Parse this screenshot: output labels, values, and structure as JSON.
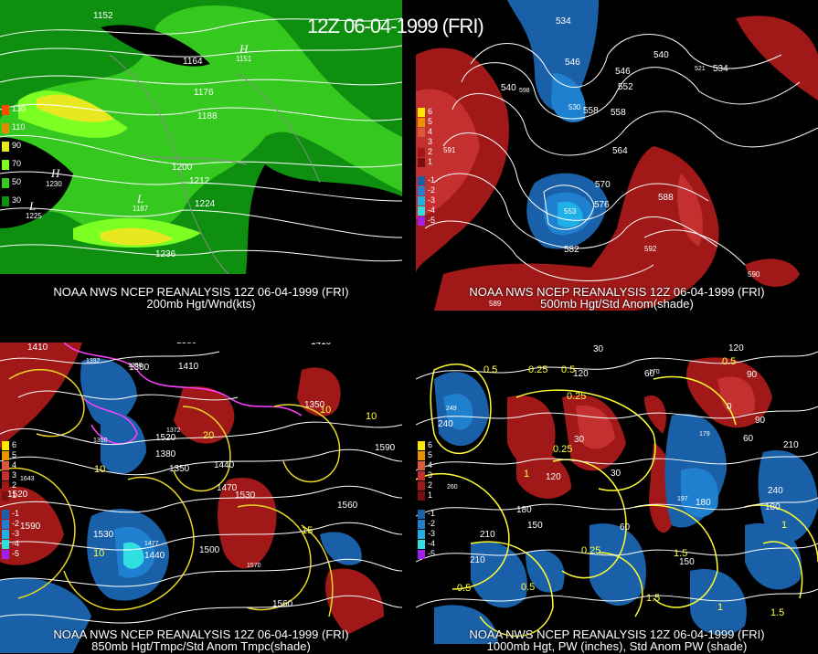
{
  "header": {
    "datetime": "12Z 06-04-1999 (FRI)"
  },
  "panels": [
    {
      "title_line1": "NOAA NWS NCEP REANALYSIS 12Z 06-04-1999 (FRI)",
      "title_line2": "200mb Hgt/Wnd(kts)",
      "legend": [
        {
          "label": "130",
          "color": "#ff4a00"
        },
        {
          "label": "110",
          "color": "#e08a00"
        },
        {
          "label": "90",
          "color": "#e8e820"
        },
        {
          "label": "70",
          "color": "#7cff22"
        },
        {
          "label": "50",
          "color": "#35c81f"
        },
        {
          "label": "30",
          "color": "#0f8f10"
        }
      ],
      "contour_labels": [
        "1152",
        "1164",
        "1176",
        "1188",
        "1200",
        "1212",
        "1224",
        "1236"
      ],
      "pressure_labels": [
        "H",
        "L",
        "L",
        "H"
      ],
      "pressure_values": [
        "1230",
        "1225",
        "1187",
        "1151"
      ]
    },
    {
      "title_line1": "NOAA NWS NCEP REANALYSIS 12Z 06-04-1999 (FRI)",
      "title_line2": "500mb Hgt/Std Anom(shade)",
      "legend": [
        {
          "label": "6",
          "color": "#ffe800"
        },
        {
          "label": "5",
          "color": "#e89400"
        },
        {
          "label": "4",
          "color": "#d85a3a"
        },
        {
          "label": "3",
          "color": "#c43030"
        },
        {
          "label": "2",
          "color": "#a01818"
        },
        {
          "label": "1",
          "color": "#7a0f0f"
        },
        {
          "label": "-1",
          "color": "#1a60a8"
        },
        {
          "label": "-2",
          "color": "#2080d0"
        },
        {
          "label": "-3",
          "color": "#20b0e8"
        },
        {
          "label": "-4",
          "color": "#30e0e0"
        },
        {
          "label": "-5",
          "color": "#a020f0"
        }
      ],
      "contour_labels": [
        "534",
        "540",
        "546",
        "552",
        "558",
        "564",
        "570",
        "576",
        "582",
        "588",
        "534",
        "540",
        "546",
        "558"
      ],
      "pressure_values": [
        "598",
        "530",
        "553",
        "521",
        "591",
        "592",
        "590",
        "589"
      ]
    },
    {
      "title_line1": "NOAA NWS NCEP REANALYSIS 12Z 06-04-1999 (FRI)",
      "title_line2": "850mb Hgt/Tmpc/Std Anom Tmpc(shade)",
      "contour_labels": [
        "1410",
        "1410",
        "1380",
        "1410",
        "1380",
        "1410",
        "1520",
        "1350",
        "1380",
        "1440",
        "1470",
        "1530",
        "1590",
        "1560",
        "1530",
        "1500",
        "1440",
        "1560",
        "1520",
        "1590",
        "1350"
      ],
      "temp_labels": [
        "10",
        "10",
        "15",
        "10",
        "20",
        "10"
      ],
      "pressure_values": [
        "1392",
        "1380",
        "1372",
        "1350",
        "1643",
        "1477",
        "1570"
      ]
    },
    {
      "title_line1": "NOAA NWS NCEP REANALYSIS 12Z 06-04-1999 (FRI)",
      "title_line2": "1000mb Hgt, PW (inches), Std Anom PW (shade)",
      "contour_labels": [
        "90",
        "120",
        "30",
        "60",
        "120",
        "90",
        "0",
        "60",
        "90",
        "210",
        "240",
        "210",
        "180",
        "150",
        "120",
        "30",
        "60",
        "180",
        "30",
        "240",
        "180",
        "150",
        "210"
      ],
      "pw_labels": [
        "0.5",
        "0.25",
        "0.5",
        "0.5",
        "0.25",
        "1",
        "0.25",
        "1",
        "1.5",
        "0.5",
        "0.25",
        "1.5",
        "1",
        "1.5",
        "0.5"
      ],
      "pressure_values": [
        "249",
        "170",
        "179",
        "197",
        "260"
      ]
    }
  ]
}
